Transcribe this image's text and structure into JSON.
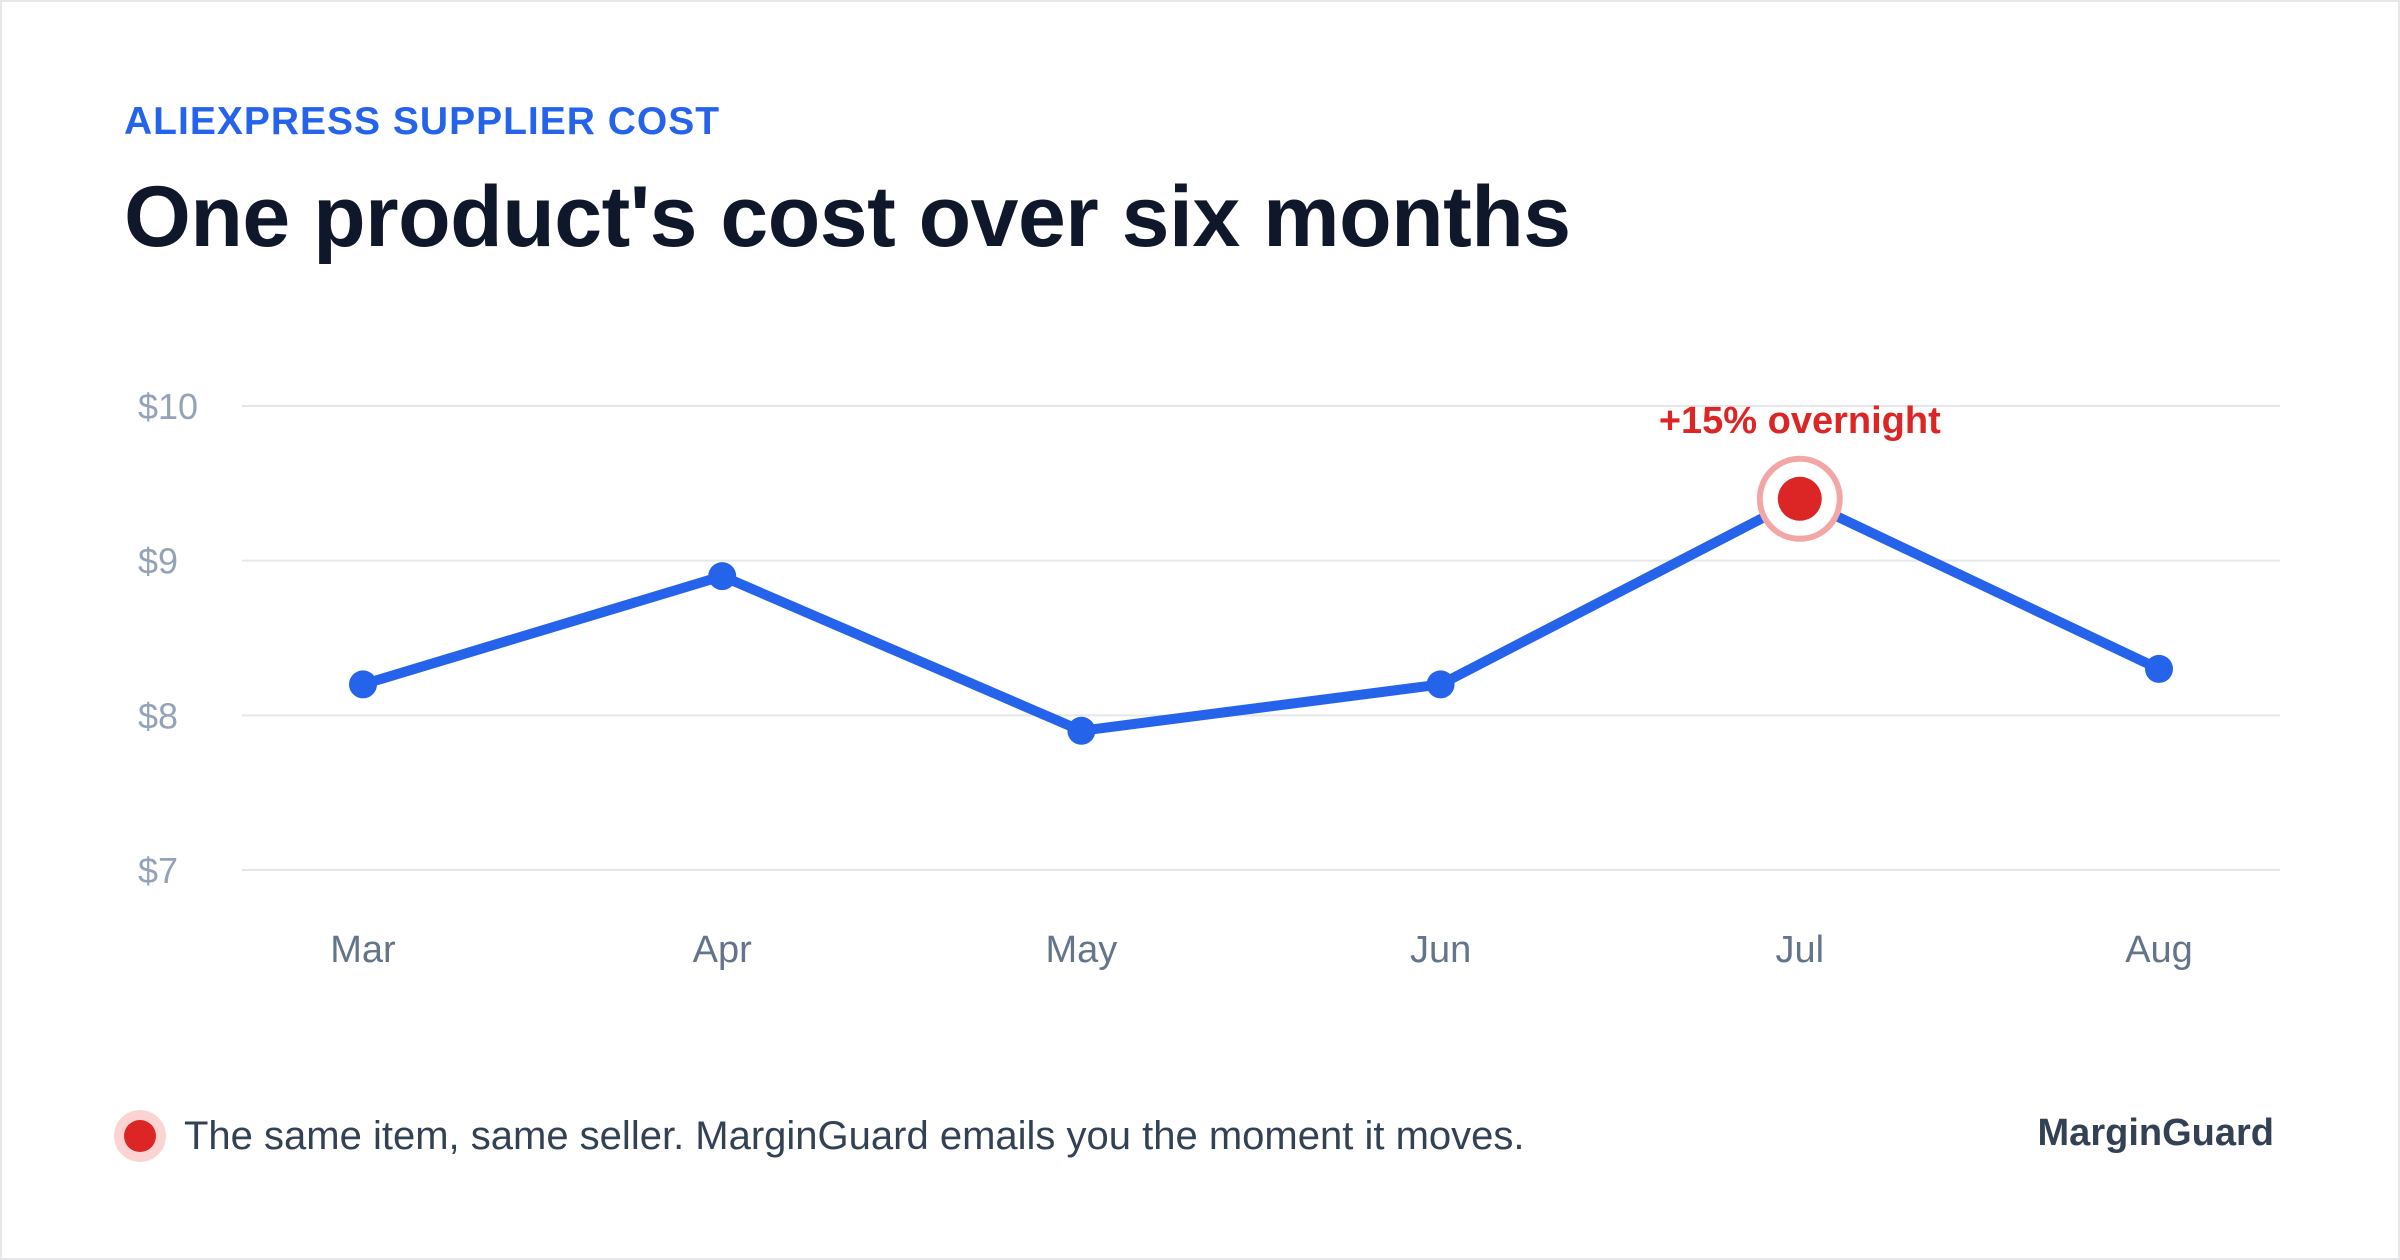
{
  "header": {
    "eyebrow": "ALIEXPRESS SUPPLIER COST",
    "title": "One product's cost over six months"
  },
  "footer": {
    "note": "The same item, same seller. MarginGuard emails you the moment it moves.",
    "brand": "MarginGuard"
  },
  "colors": {
    "line": "#2563eb",
    "highlight": "#dc2626",
    "halo": "#f3a6a6",
    "grid": "#e5e7eb"
  },
  "chart_data": {
    "type": "line",
    "title": "One product's cost over six months",
    "xlabel": "",
    "ylabel": "",
    "categories": [
      "Mar",
      "Apr",
      "May",
      "Jun",
      "Jul",
      "Aug"
    ],
    "series": [
      {
        "values": [
          8.2,
          8.9,
          7.9,
          8.2,
          9.4,
          8.3
        ]
      }
    ],
    "ylim": [
      7,
      10
    ],
    "yticks": [
      7,
      8,
      9,
      10
    ],
    "ytick_labels": [
      "$7",
      "$8",
      "$9",
      "$10"
    ],
    "grid": true,
    "annotation": {
      "category": "Jul",
      "text": "+15% overnight"
    }
  }
}
